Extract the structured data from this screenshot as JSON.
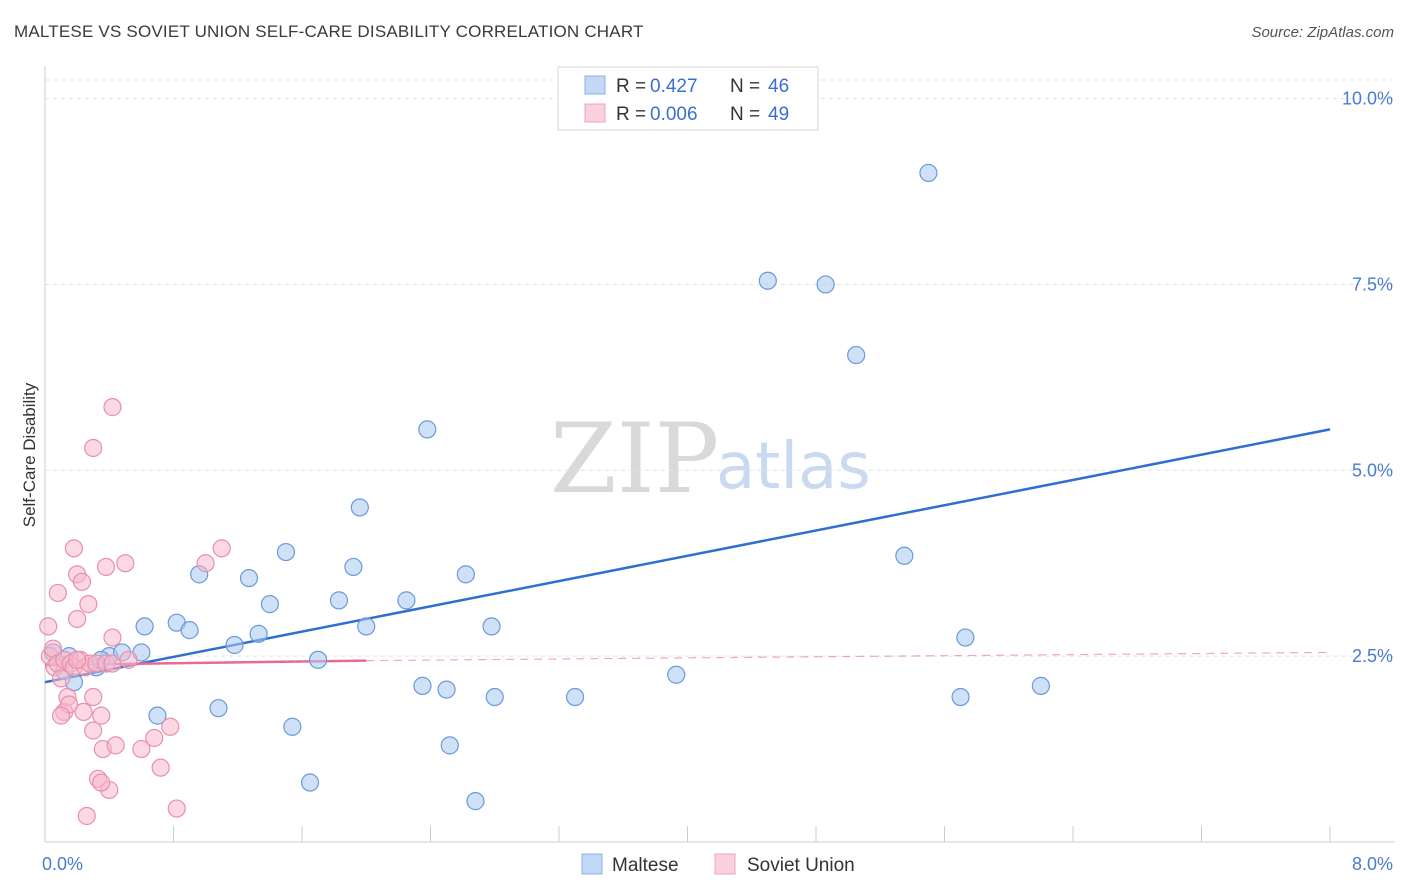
{
  "header": {
    "title": "MALTESE VS SOVIET UNION SELF-CARE DISABILITY CORRELATION CHART",
    "source": "Source: ZipAtlas.com"
  },
  "watermark": {
    "zip": "ZIP",
    "atlas": "atlas"
  },
  "legend": {
    "rows": [
      {
        "r_label": "R =",
        "r_value": "0.427",
        "n_label": "N =",
        "n_value": "46",
        "color": "#a8c8f0"
      },
      {
        "r_label": "R =",
        "r_value": "0.006",
        "n_label": "N =",
        "n_value": "49",
        "color": "#f8b8cc"
      }
    ]
  },
  "bottom_legend": {
    "items": [
      "Maltese",
      "Soviet Union"
    ]
  },
  "chart_data": {
    "type": "scatter",
    "title": "MALTESE VS SOVIET UNION SELF-CARE DISABILITY CORRELATION CHART",
    "ylabel": "Self-Care Disability",
    "xlabel": "",
    "xlim": [
      0,
      8
    ],
    "ylim": [
      0,
      10.25
    ],
    "x_tick_labels": [
      "0.0%",
      "8.0%"
    ],
    "y_tick_labels": [
      "2.5%",
      "5.0%",
      "7.5%",
      "10.0%"
    ],
    "y_ticks": [
      2.5,
      5.0,
      7.5,
      10.0
    ],
    "grid": true,
    "legend_position": "top-center",
    "series": [
      {
        "name": "Maltese",
        "color": "#a8c8f0",
        "stroke": "#6a9ad8",
        "trend": {
          "x": [
            0,
            8
          ],
          "y": [
            2.15,
            5.55
          ],
          "color": "#2f6fd0"
        },
        "points": [
          [
            0.05,
            2.55
          ],
          [
            0.12,
            2.3
          ],
          [
            0.18,
            2.15
          ],
          [
            0.32,
            2.35
          ],
          [
            0.4,
            2.5
          ],
          [
            0.48,
            2.55
          ],
          [
            0.6,
            2.55
          ],
          [
            0.62,
            2.9
          ],
          [
            0.7,
            1.7
          ],
          [
            0.82,
            2.95
          ],
          [
            0.9,
            2.85
          ],
          [
            0.96,
            3.6
          ],
          [
            1.08,
            1.8
          ],
          [
            1.18,
            2.65
          ],
          [
            1.27,
            3.55
          ],
          [
            1.33,
            2.8
          ],
          [
            1.4,
            3.2
          ],
          [
            1.5,
            3.9
          ],
          [
            1.54,
            1.55
          ],
          [
            1.65,
            0.8
          ],
          [
            1.7,
            2.45
          ],
          [
            1.83,
            3.25
          ],
          [
            1.92,
            3.7
          ],
          [
            1.96,
            4.5
          ],
          [
            2.0,
            2.9
          ],
          [
            2.25,
            3.25
          ],
          [
            2.35,
            2.1
          ],
          [
            2.38,
            5.55
          ],
          [
            2.5,
            2.05
          ],
          [
            2.52,
            1.3
          ],
          [
            2.62,
            3.6
          ],
          [
            2.68,
            0.55
          ],
          [
            2.78,
            2.9
          ],
          [
            2.8,
            1.95
          ],
          [
            3.3,
            1.95
          ],
          [
            3.93,
            2.25
          ],
          [
            4.5,
            7.55
          ],
          [
            4.86,
            7.5
          ],
          [
            5.05,
            6.55
          ],
          [
            5.35,
            3.85
          ],
          [
            5.5,
            9.0
          ],
          [
            5.7,
            1.95
          ],
          [
            5.73,
            2.75
          ],
          [
            6.2,
            2.1
          ],
          [
            0.35,
            2.45
          ],
          [
            0.15,
            2.5
          ]
        ]
      },
      {
        "name": "Soviet Union",
        "color": "#f8b8cc",
        "stroke": "#e890ac",
        "trend": {
          "x": [
            0,
            2.0
          ],
          "y": [
            2.38,
            2.44
          ],
          "color": "#e86a9a",
          "dashed_extension": [
            2.0,
            8.0,
            2.44,
            2.55
          ]
        },
        "points": [
          [
            0.02,
            2.9
          ],
          [
            0.03,
            2.5
          ],
          [
            0.05,
            2.6
          ],
          [
            0.06,
            2.35
          ],
          [
            0.08,
            3.35
          ],
          [
            0.08,
            2.4
          ],
          [
            0.1,
            2.2
          ],
          [
            0.12,
            1.75
          ],
          [
            0.12,
            2.45
          ],
          [
            0.14,
            1.95
          ],
          [
            0.15,
            1.85
          ],
          [
            0.16,
            2.4
          ],
          [
            0.18,
            3.95
          ],
          [
            0.18,
            2.35
          ],
          [
            0.2,
            3.0
          ],
          [
            0.2,
            3.6
          ],
          [
            0.22,
            2.45
          ],
          [
            0.23,
            3.5
          ],
          [
            0.24,
            1.75
          ],
          [
            0.25,
            2.35
          ],
          [
            0.27,
            3.2
          ],
          [
            0.28,
            2.4
          ],
          [
            0.3,
            1.95
          ],
          [
            0.3,
            1.5
          ],
          [
            0.32,
            2.4
          ],
          [
            0.33,
            0.85
          ],
          [
            0.35,
            1.7
          ],
          [
            0.36,
            1.25
          ],
          [
            0.38,
            3.7
          ],
          [
            0.38,
            2.4
          ],
          [
            0.4,
            0.7
          ],
          [
            0.42,
            2.75
          ],
          [
            0.42,
            2.4
          ],
          [
            0.44,
            1.3
          ],
          [
            0.5,
            3.75
          ],
          [
            0.52,
            2.45
          ],
          [
            0.6,
            1.25
          ],
          [
            0.68,
            1.4
          ],
          [
            0.72,
            1.0
          ],
          [
            0.78,
            1.55
          ],
          [
            0.82,
            0.45
          ],
          [
            1.0,
            3.75
          ],
          [
            1.1,
            3.95
          ],
          [
            0.3,
            5.3
          ],
          [
            0.42,
            5.85
          ],
          [
            0.26,
            0.35
          ],
          [
            0.1,
            1.7
          ],
          [
            0.35,
            0.8
          ],
          [
            0.2,
            2.45
          ]
        ]
      }
    ]
  }
}
